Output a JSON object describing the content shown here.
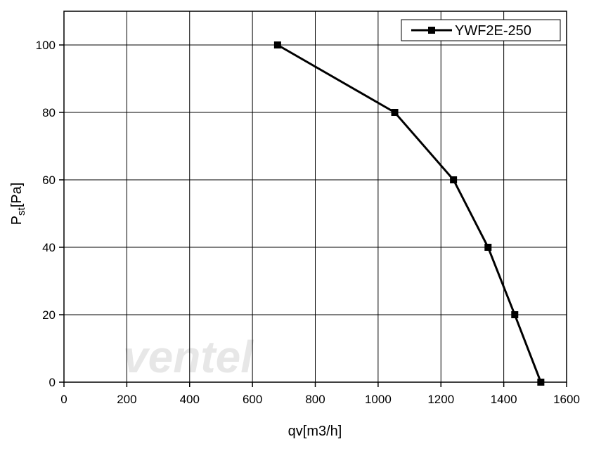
{
  "chart_data": {
    "type": "line",
    "x_label": "qv[m3/h]",
    "y_label": [
      "P",
      "st",
      "[Pa]"
    ],
    "watermark": "ventel",
    "series": [
      {
        "name": "YWF2E-250",
        "color": "#000000",
        "x": [
          680,
          1053,
          1240,
          1350,
          1435,
          1518
        ],
        "values": [
          100,
          80,
          60,
          40,
          20,
          0
        ]
      }
    ],
    "xlim": [
      0,
      1600
    ],
    "xticks": [
      0,
      200,
      400,
      600,
      800,
      1000,
      1200,
      1400,
      1600
    ],
    "ylim": [
      0,
      110
    ],
    "yticks": [
      0,
      20,
      40,
      60,
      80,
      100
    ],
    "grid": true,
    "legend": "top-right"
  }
}
